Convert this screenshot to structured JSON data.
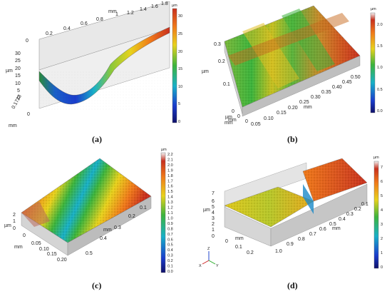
{
  "panels": [
    {
      "id": "a",
      "caption": "(a)",
      "x_label": "mm",
      "x_ticks": [
        "0.2",
        "0.4",
        "0.6",
        "0.8",
        "1",
        "1.2",
        "1.4",
        "1.6",
        "1.8"
      ],
      "y_label": "µm",
      "y_ticks": [
        "30",
        "25",
        "20",
        "15",
        "10",
        "5",
        "0"
      ],
      "z_label": "mm",
      "z_ticks": [
        "0.1723",
        "0"
      ],
      "scale_unit": "µm",
      "scale_ticks": [
        "30",
        "25",
        "20",
        "15",
        "10",
        "5",
        "0"
      ]
    },
    {
      "id": "b",
      "caption": "(b)",
      "y_label": "µm",
      "y_ticks": [
        "0.3",
        "0.2",
        "0.1"
      ],
      "x_label": "mm",
      "x_ticks": [
        "0",
        "0.05",
        "0.10",
        "0.15",
        "0.20",
        "0.25",
        "0.30",
        "0.35",
        "0.40",
        "0.45",
        "0.50"
      ],
      "depth_label": "mm",
      "depth_ticks": [
        "0",
        "0.05"
      ],
      "scale_unit": "µm",
      "scale_ticks": [
        "2.0",
        "1.5",
        "1.0",
        "0.5",
        "0.0"
      ]
    },
    {
      "id": "c",
      "caption": "(c)",
      "y_label": "µm",
      "y_ticks": [
        "2",
        "1",
        "0"
      ],
      "x_label": "mm",
      "x_ticks": [
        "0",
        "0.05",
        "0.10",
        "0.15",
        "0.20"
      ],
      "depth_label": "mm",
      "depth_ticks": [
        "0.1",
        "0.2",
        "0.3",
        "0.4",
        "0.5"
      ],
      "scale_unit": "µm",
      "scale_ticks": [
        "2.2",
        "2.1",
        "2.0",
        "1.9",
        "1.8",
        "1.7",
        "1.6",
        "1.5",
        "1.4",
        "1.3",
        "1.2",
        "1.1",
        "1.0",
        "0.9",
        "0.8",
        "0.7",
        "0.6",
        "0.5",
        "0.4",
        "0.3",
        "0.2",
        "0.1",
        "0.0"
      ]
    },
    {
      "id": "d",
      "caption": "(d)",
      "y_label": "µm",
      "y_ticks": [
        "7",
        "6",
        "5",
        "4",
        "3",
        "2",
        "1",
        "0"
      ],
      "x_label": "mm",
      "x_ticks": [
        "0.1",
        "0.2",
        "0.3",
        "0.4",
        "0.5",
        "0.6",
        "0.7",
        "0.8",
        "0.9",
        "1.0"
      ],
      "depth_label": "mm",
      "depth_ticks": [
        "0",
        "0.1",
        "0.2"
      ],
      "triad": [
        "Z",
        "X",
        "Y"
      ],
      "scale_unit": "µm",
      "scale_ticks": [
        "7",
        "6",
        "5",
        "4",
        "3",
        "2",
        "1",
        "0"
      ]
    }
  ],
  "colors": {
    "jet_red": "#c8301e",
    "jet_orange": "#f07a1a",
    "jet_yellow": "#e8d21c",
    "jet_green": "#3cb43c",
    "jet_cyan": "#18b0c8",
    "jet_blue": "#1a3ccc",
    "jet_navy": "#10106a",
    "box_side": "#d9d9d9",
    "box_side_dark": "#bfbfbf"
  }
}
